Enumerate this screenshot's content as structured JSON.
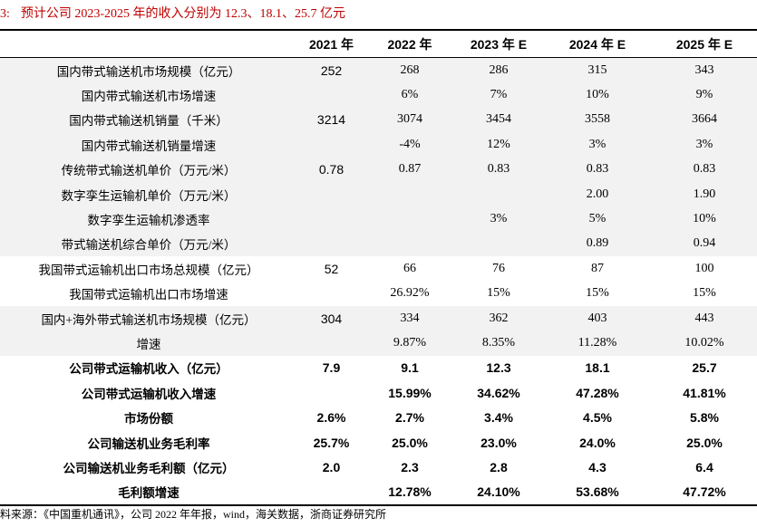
{
  "title": {
    "label": "3:",
    "text": "预计公司 2023-2025 年的收入分别为 12.3、18.1、25.7 亿元"
  },
  "table": {
    "headers": [
      "",
      "2021 年",
      "2022 年",
      "2023 年 E",
      "2024 年 E",
      "2025 年 E"
    ],
    "rows": [
      {
        "label": "国内带式输送机市场规模（亿元）",
        "values": [
          "252",
          "268",
          "286",
          "315",
          "343"
        ],
        "bold": false,
        "shade": true
      },
      {
        "label": "国内带式输送机市场增速",
        "values": [
          "",
          "6%",
          "7%",
          "10%",
          "9%"
        ],
        "bold": false,
        "shade": true
      },
      {
        "label": "国内带式输送机销量（千米）",
        "values": [
          "3214",
          "3074",
          "3454",
          "3558",
          "3664"
        ],
        "bold": false,
        "shade": true
      },
      {
        "label": "国内带式输送机销量增速",
        "values": [
          "",
          "-4%",
          "12%",
          "3%",
          "3%"
        ],
        "bold": false,
        "shade": true
      },
      {
        "label": "传统带式输送机单价（万元/米）",
        "values": [
          "0.78",
          "0.87",
          "0.83",
          "0.83",
          "0.83"
        ],
        "bold": false,
        "shade": true
      },
      {
        "label": "数字孪生运输机单价（万元/米）",
        "values": [
          "",
          "",
          "",
          "2.00",
          "1.90"
        ],
        "bold": false,
        "shade": true
      },
      {
        "label": "数字孪生运输机渗透率",
        "values": [
          "",
          "",
          "3%",
          "5%",
          "10%"
        ],
        "bold": false,
        "shade": true
      },
      {
        "label": "带式输送机综合单价（万元/米）",
        "values": [
          "",
          "",
          "",
          "0.89",
          "0.94"
        ],
        "bold": false,
        "shade": true
      },
      {
        "label": "我国带式运输机出口市场总规模（亿元）",
        "values": [
          "52",
          "66",
          "76",
          "87",
          "100"
        ],
        "bold": false,
        "shade": false
      },
      {
        "label": "我国带式运输机出口市场增速",
        "values": [
          "",
          "26.92%",
          "15%",
          "15%",
          "15%"
        ],
        "bold": false,
        "shade": false
      },
      {
        "label": "国内+海外带式输送机市场规模（亿元）",
        "values": [
          "304",
          "334",
          "362",
          "403",
          "443"
        ],
        "bold": false,
        "shade": true
      },
      {
        "label": "增速",
        "values": [
          "",
          "9.87%",
          "8.35%",
          "11.28%",
          "10.02%"
        ],
        "bold": false,
        "shade": true
      },
      {
        "label": "公司带式运输机收入（亿元）",
        "values": [
          "7.9",
          "9.1",
          "12.3",
          "18.1",
          "25.7"
        ],
        "bold": true,
        "shade": false
      },
      {
        "label": "公司带式运输机收入增速",
        "values": [
          "",
          "15.99%",
          "34.62%",
          "47.28%",
          "41.81%"
        ],
        "bold": true,
        "shade": false
      },
      {
        "label": "市场份额",
        "values": [
          "2.6%",
          "2.7%",
          "3.4%",
          "4.5%",
          "5.8%"
        ],
        "bold": true,
        "shade": false
      },
      {
        "label": "公司输送机业务毛利率",
        "values": [
          "25.7%",
          "25.0%",
          "23.0%",
          "24.0%",
          "25.0%"
        ],
        "bold": true,
        "shade": false
      },
      {
        "label": "公司输送机业务毛利额（亿元）",
        "values": [
          "2.0",
          "2.3",
          "2.8",
          "4.3",
          "6.4"
        ],
        "bold": true,
        "shade": false
      },
      {
        "label": "毛利额增速",
        "values": [
          "",
          "12.78%",
          "24.10%",
          "53.68%",
          "47.72%"
        ],
        "bold": true,
        "shade": false
      }
    ]
  },
  "source": "料来源：《中国重机通讯》，公司 2022 年年报，wind，海关数据，浙商证券研究所"
}
